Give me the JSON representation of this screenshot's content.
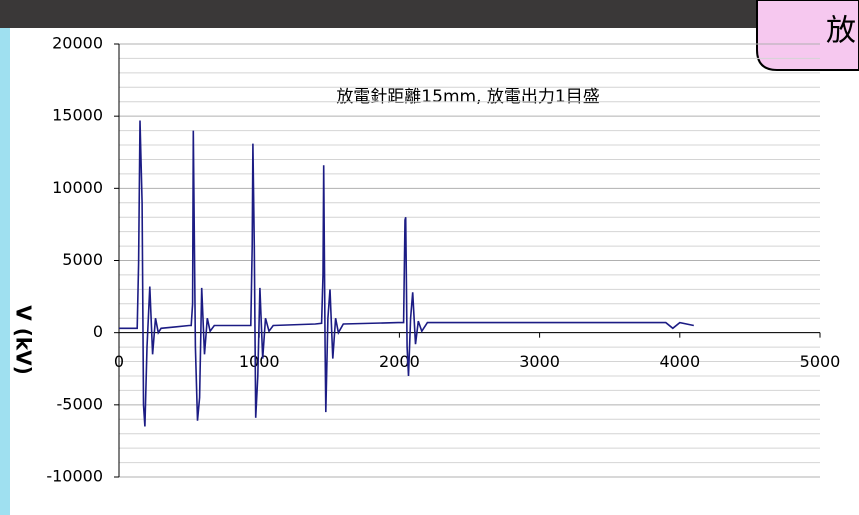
{
  "banner_text": "放",
  "chart_data": {
    "type": "line",
    "annotation": "放電針距離15mm, 放電出力1目盛",
    "ylabel": "V (kV)",
    "color": "#1c1c84",
    "x": [
      0,
      130,
      140,
      150,
      165,
      175,
      185,
      200,
      220,
      240,
      260,
      280,
      300,
      400,
      500,
      515,
      525,
      530,
      545,
      560,
      575,
      590,
      610,
      630,
      650,
      680,
      900,
      940,
      950,
      955,
      965,
      975,
      990,
      1005,
      1025,
      1045,
      1070,
      1100,
      1400,
      1445,
      1455,
      1460,
      1470,
      1475,
      1490,
      1505,
      1525,
      1545,
      1565,
      1600,
      1990,
      2030,
      2040,
      2045,
      2055,
      2065,
      2080,
      2095,
      2115,
      2135,
      2160,
      2200,
      3000,
      3900,
      3950,
      4000,
      4100
    ],
    "values": [
      300,
      300,
      4800,
      14700,
      9000,
      -5000,
      -6500,
      -1000,
      3200,
      -1500,
      1000,
      0,
      300,
      400,
      500,
      500,
      2000,
      14000,
      -1000,
      -6100,
      -4500,
      3100,
      -1500,
      1000,
      100,
      500,
      500,
      500,
      6000,
      13100,
      6000,
      -5900,
      -3000,
      3100,
      -1800,
      1000,
      100,
      500,
      600,
      650,
      4000,
      11600,
      -1000,
      -5500,
      1000,
      3000,
      -1800,
      1000,
      0,
      600,
      700,
      700,
      7800,
      8000,
      -1000,
      -3000,
      1000,
      2800,
      -800,
      800,
      100,
      700,
      700,
      700,
      300,
      700,
      500
    ],
    "xlim": [
      0,
      5000
    ],
    "xticks": [
      0,
      1000,
      2000,
      3000,
      4000,
      5000
    ],
    "ylim": [
      -10000,
      20000
    ],
    "yticks": [
      -10000,
      -5000,
      0,
      5000,
      10000,
      15000,
      20000
    ],
    "grid": true,
    "minor_grid": true
  }
}
